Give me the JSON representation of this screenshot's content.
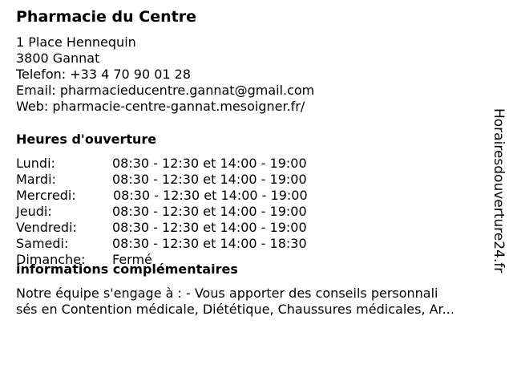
{
  "name": "Pharmacie du Centre",
  "address": {
    "street": "1 Place Hennequin",
    "city": "3800 Gannat",
    "phone": "Telefon: +33 4 70 90 01 28",
    "email": "Email: pharmacieducentre.gannat@gmail.com",
    "web": "Web: pharmacie-centre-gannat.mesoigner.fr/"
  },
  "hours": {
    "heading": "Heures d'ouverture",
    "days": [
      {
        "day": "Lundi:",
        "time": "08:30 - 12:30 et 14:00 - 19:00"
      },
      {
        "day": "Mardi:",
        "time": "08:30 - 12:30 et 14:00 - 19:00"
      },
      {
        "day": "Mercredi:",
        "time": "08:30 - 12:30 et 14:00 - 19:00"
      },
      {
        "day": "Jeudi:",
        "time": "08:30 - 12:30 et 14:00 - 19:00"
      },
      {
        "day": "Vendredi:",
        "time": "08:30 - 12:30 et 14:00 - 19:00"
      },
      {
        "day": "Samedi:",
        "time": "08:30 - 12:30 et 14:00 - 18:30"
      },
      {
        "day": "Dimanche:",
        "time": "Fermé"
      }
    ]
  },
  "info": {
    "heading": "informations complémentaires",
    "line1": "Notre équipe s'engage à : - Vous apporter des conseils personnali",
    "line2": "sés en Contention médicale, Diététique, Chaussures médicales, Ar..."
  },
  "watermark": "Horairesdouverture24.fr"
}
